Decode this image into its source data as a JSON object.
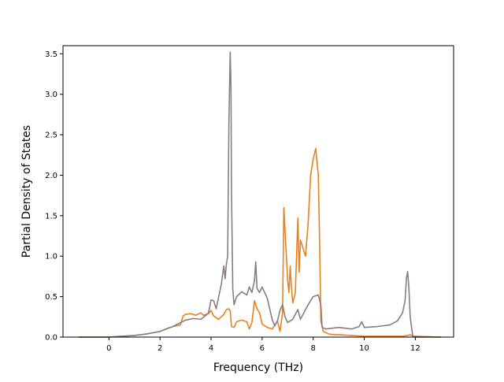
{
  "chart_data": {
    "type": "line",
    "title": "",
    "xlabel": "Frequency (THz)",
    "ylabel": "Partial Density of States",
    "xlim": [
      -1.8,
      13.5
    ],
    "ylim": [
      0,
      3.6
    ],
    "xticks": [
      0,
      2,
      4,
      6,
      8,
      10,
      12
    ],
    "yticks": [
      0.0,
      0.5,
      1.0,
      1.5,
      2.0,
      2.5,
      3.0,
      3.5
    ],
    "xtick_labels": [
      "0",
      "2",
      "4",
      "6",
      "8",
      "10",
      "12"
    ],
    "ytick_labels": [
      "0.0",
      "0.5",
      "1.0",
      "1.5",
      "2.0",
      "2.5",
      "3.0",
      "3.5"
    ],
    "grid": false,
    "legend": "none",
    "series": [
      {
        "color": "#e8811f",
        "x": [
          -1.2,
          0.0,
          0.5,
          1.0,
          1.5,
          2.0,
          2.3,
          2.5,
          2.8,
          2.9,
          3.0,
          3.2,
          3.4,
          3.6,
          3.7,
          3.9,
          4.0,
          4.1,
          4.3,
          4.5,
          4.6,
          4.7,
          4.75,
          4.8,
          4.9,
          5.0,
          5.2,
          5.4,
          5.5,
          5.6,
          5.7,
          5.8,
          5.9,
          6.0,
          6.2,
          6.4,
          6.6,
          6.7,
          6.8,
          6.85,
          6.9,
          7.0,
          7.05,
          7.1,
          7.15,
          7.2,
          7.3,
          7.4,
          7.45,
          7.5,
          7.6,
          7.7,
          7.8,
          7.9,
          8.0,
          8.1,
          8.2,
          8.25,
          8.3,
          8.4,
          8.6,
          8.8,
          9.0,
          9.5,
          10.0,
          10.5,
          11.0,
          11.5,
          11.7,
          11.8,
          12.0,
          13.0
        ],
        "values": [
          0.0,
          0.0,
          0.01,
          0.02,
          0.04,
          0.07,
          0.11,
          0.13,
          0.15,
          0.26,
          0.28,
          0.29,
          0.27,
          0.3,
          0.27,
          0.29,
          0.33,
          0.26,
          0.22,
          0.28,
          0.34,
          0.35,
          0.32,
          0.13,
          0.12,
          0.19,
          0.21,
          0.19,
          0.1,
          0.18,
          0.45,
          0.35,
          0.3,
          0.16,
          0.12,
          0.1,
          0.2,
          0.07,
          0.3,
          1.6,
          1.3,
          0.7,
          0.55,
          0.88,
          0.6,
          0.42,
          0.55,
          1.47,
          0.8,
          1.2,
          1.1,
          1.0,
          1.4,
          2.0,
          2.2,
          2.33,
          2.0,
          1.2,
          0.2,
          0.07,
          0.04,
          0.03,
          0.03,
          0.02,
          0.01,
          0.01,
          0.01,
          0.01,
          0.02,
          0.03,
          0.0,
          0.0
        ]
      },
      {
        "color": "#8a7b7f",
        "x": [
          -1.2,
          0.0,
          0.5,
          1.0,
          1.5,
          2.0,
          2.5,
          3.0,
          3.3,
          3.6,
          3.8,
          3.9,
          4.0,
          4.1,
          4.2,
          4.3,
          4.4,
          4.5,
          4.55,
          4.6,
          4.65,
          4.7,
          4.75,
          4.78,
          4.8,
          4.85,
          4.9,
          5.0,
          5.2,
          5.4,
          5.5,
          5.6,
          5.7,
          5.75,
          5.8,
          5.9,
          6.0,
          6.2,
          6.4,
          6.5,
          6.6,
          6.7,
          6.8,
          6.9,
          7.0,
          7.2,
          7.4,
          7.5,
          7.6,
          7.8,
          8.0,
          8.2,
          8.3,
          8.35,
          8.5,
          9.0,
          9.5,
          9.8,
          9.9,
          10.0,
          10.5,
          11.0,
          11.3,
          11.5,
          11.6,
          11.65,
          11.7,
          11.75,
          11.8,
          11.9,
          13.0
        ],
        "values": [
          0.0,
          0.0,
          0.01,
          0.02,
          0.04,
          0.07,
          0.13,
          0.21,
          0.23,
          0.22,
          0.27,
          0.3,
          0.46,
          0.45,
          0.35,
          0.5,
          0.65,
          0.88,
          0.72,
          0.9,
          1.0,
          2.7,
          3.52,
          3.1,
          1.8,
          0.6,
          0.4,
          0.5,
          0.56,
          0.52,
          0.62,
          0.55,
          0.7,
          0.93,
          0.6,
          0.55,
          0.62,
          0.48,
          0.21,
          0.14,
          0.2,
          0.33,
          0.4,
          0.25,
          0.18,
          0.22,
          0.34,
          0.22,
          0.28,
          0.4,
          0.5,
          0.52,
          0.4,
          0.12,
          0.1,
          0.12,
          0.1,
          0.13,
          0.19,
          0.12,
          0.13,
          0.15,
          0.2,
          0.3,
          0.45,
          0.72,
          0.81,
          0.6,
          0.25,
          0.01,
          0.0
        ]
      }
    ]
  }
}
